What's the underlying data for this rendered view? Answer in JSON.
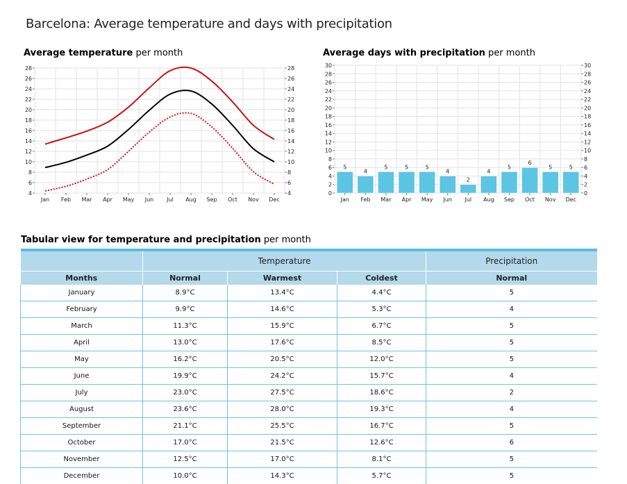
{
  "page_title": "Barcelona: Average temperature and days with precipitation",
  "temp_chart_heading": {
    "bold": "Average temperature",
    "rest": " per month"
  },
  "precip_chart_heading": {
    "bold": "Average days with precipitation",
    "rest": " per month"
  },
  "table_heading": {
    "bold": "Tabular view for temperature and precipitation",
    "rest": " per month"
  },
  "colors": {
    "warmest_line": "#cc1111",
    "normal_line": "#000000",
    "coldest_line": "#cc1111",
    "bar_fill": "#5bc5e3",
    "table_header_bg": "#b3d9ea",
    "table_accent": "#5bbde4"
  },
  "chart_data": [
    {
      "type": "line",
      "categories": [
        "Jan",
        "Feb",
        "Mar",
        "Apr",
        "May",
        "Jun",
        "Jul",
        "Aug",
        "Sep",
        "Oct",
        "Nov",
        "Dec"
      ],
      "series": [
        {
          "values": [
            13.4,
            14.6,
            15.9,
            17.6,
            20.5,
            24.2,
            27.5,
            28.0,
            25.5,
            21.5,
            17.0,
            14.3
          ],
          "style": "solid",
          "color": "#cc1111"
        },
        {
          "values": [
            8.9,
            9.9,
            11.3,
            13.0,
            16.2,
            19.9,
            23.0,
            23.6,
            21.1,
            17.0,
            12.5,
            10.0
          ],
          "style": "solid",
          "color": "#000000"
        },
        {
          "values": [
            4.4,
            5.3,
            6.7,
            8.5,
            12.0,
            15.7,
            18.6,
            19.3,
            16.7,
            12.6,
            8.1,
            5.7
          ],
          "style": "dotted",
          "color": "#cc1111"
        }
      ],
      "ylim": [
        4,
        28
      ],
      "yticks": [
        4,
        6,
        8,
        10,
        12,
        14,
        16,
        18,
        20,
        22,
        24,
        26,
        28
      ],
      "grid": true,
      "right_axis_mirrored": true
    },
    {
      "type": "bar",
      "categories": [
        "Jan",
        "Feb",
        "Mar",
        "Apr",
        "May",
        "Jun",
        "Jul",
        "Aug",
        "Sep",
        "Oct",
        "Nov",
        "Dec"
      ],
      "values": [
        5,
        4,
        5,
        5,
        5,
        4,
        2,
        4,
        5,
        6,
        5,
        5
      ],
      "ylim": [
        0,
        30
      ],
      "yticks": [
        0,
        2,
        4,
        6,
        8,
        10,
        12,
        14,
        16,
        18,
        20,
        22,
        24,
        26,
        28,
        30
      ],
      "grid": true,
      "data_labels": true,
      "right_axis_mirrored": true
    }
  ],
  "table": {
    "group_headers": [
      "Temperature",
      "Precipitation"
    ],
    "columns": [
      "Months",
      "Normal",
      "Warmest",
      "Coldest",
      "Normal"
    ],
    "rows": [
      [
        "January",
        "8.9°C",
        "13.4°C",
        "4.4°C",
        "5"
      ],
      [
        "February",
        "9.9°C",
        "14.6°C",
        "5.3°C",
        "4"
      ],
      [
        "March",
        "11.3°C",
        "15.9°C",
        "6.7°C",
        "5"
      ],
      [
        "April",
        "13.0°C",
        "17.6°C",
        "8.5°C",
        "5"
      ],
      [
        "May",
        "16.2°C",
        "20.5°C",
        "12.0°C",
        "5"
      ],
      [
        "June",
        "19.9°C",
        "24.2°C",
        "15.7°C",
        "4"
      ],
      [
        "July",
        "23.0°C",
        "27.5°C",
        "18.6°C",
        "2"
      ],
      [
        "August",
        "23.6°C",
        "28.0°C",
        "19.3°C",
        "4"
      ],
      [
        "September",
        "21.1°C",
        "25.5°C",
        "16.7°C",
        "5"
      ],
      [
        "October",
        "17.0°C",
        "21.5°C",
        "12.6°C",
        "6"
      ],
      [
        "November",
        "12.5°C",
        "17.0°C",
        "8.1°C",
        "5"
      ],
      [
        "December",
        "10.0°C",
        "14.3°C",
        "5.7°C",
        "5"
      ]
    ]
  }
}
